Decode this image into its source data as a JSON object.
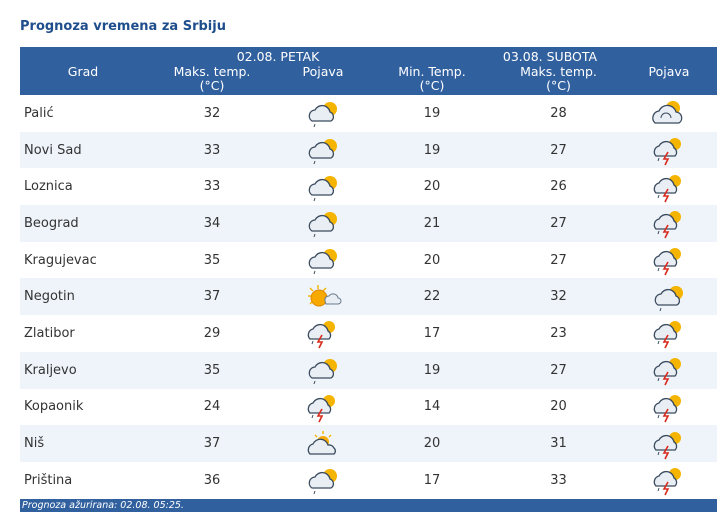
{
  "title": "Prognoza vremena za Srbiju",
  "header": {
    "day1": "02.08. PETAK",
    "day2": "03.08. SUBOTA",
    "col_city": "Grad",
    "col_max1_a": "Maks. temp.",
    "col_max1_b": "(°C)",
    "col_icon1": "Pojava",
    "col_min2_a": "Min. Temp.",
    "col_min2_b": "(°C)",
    "col_max2_a": "Maks. temp.",
    "col_max2_b": "(°C)",
    "col_icon2": "Pojava"
  },
  "rows": [
    {
      "city": "Palić",
      "max1": "32",
      "icon1": "partly-cloudy-rain-icon",
      "min2": "19",
      "max2": "28",
      "icon2": "partly-cloudy-icon"
    },
    {
      "city": "Novi Sad",
      "max1": "33",
      "icon1": "partly-cloudy-rain-icon",
      "min2": "19",
      "max2": "27",
      "icon2": "thunderstorm-icon"
    },
    {
      "city": "Loznica",
      "max1": "33",
      "icon1": "partly-cloudy-rain-icon",
      "min2": "20",
      "max2": "26",
      "icon2": "thunderstorm-icon"
    },
    {
      "city": "Beograd",
      "max1": "34",
      "icon1": "partly-cloudy-rain-icon",
      "min2": "21",
      "max2": "27",
      "icon2": "thunderstorm-icon"
    },
    {
      "city": "Kragujevac",
      "max1": "35",
      "icon1": "partly-cloudy-rain-icon",
      "min2": "20",
      "max2": "27",
      "icon2": "thunderstorm-icon"
    },
    {
      "city": "Negotin",
      "max1": "37",
      "icon1": "sunny-cloud-icon",
      "min2": "22",
      "max2": "32",
      "icon2": "partly-cloudy-rain-icon"
    },
    {
      "city": "Zlatibor",
      "max1": "29",
      "icon1": "thunderstorm-icon",
      "min2": "17",
      "max2": "23",
      "icon2": "thunderstorm-icon"
    },
    {
      "city": "Kraljevo",
      "max1": "35",
      "icon1": "partly-cloudy-rain-icon",
      "min2": "19",
      "max2": "27",
      "icon2": "thunderstorm-icon"
    },
    {
      "city": "Kopaonik",
      "max1": "24",
      "icon1": "thunderstorm-icon",
      "min2": "14",
      "max2": "20",
      "icon2": "thunderstorm-icon"
    },
    {
      "city": "Niš",
      "max1": "37",
      "icon1": "sun-behind-cloud-icon",
      "min2": "20",
      "max2": "31",
      "icon2": "thunderstorm-icon"
    },
    {
      "city": "Priština",
      "max1": "36",
      "icon1": "partly-cloudy-rain-icon",
      "min2": "17",
      "max2": "33",
      "icon2": "thunderstorm-icon"
    }
  ],
  "footer": "Prognoza ažurirana:  02.08.  05:25."
}
